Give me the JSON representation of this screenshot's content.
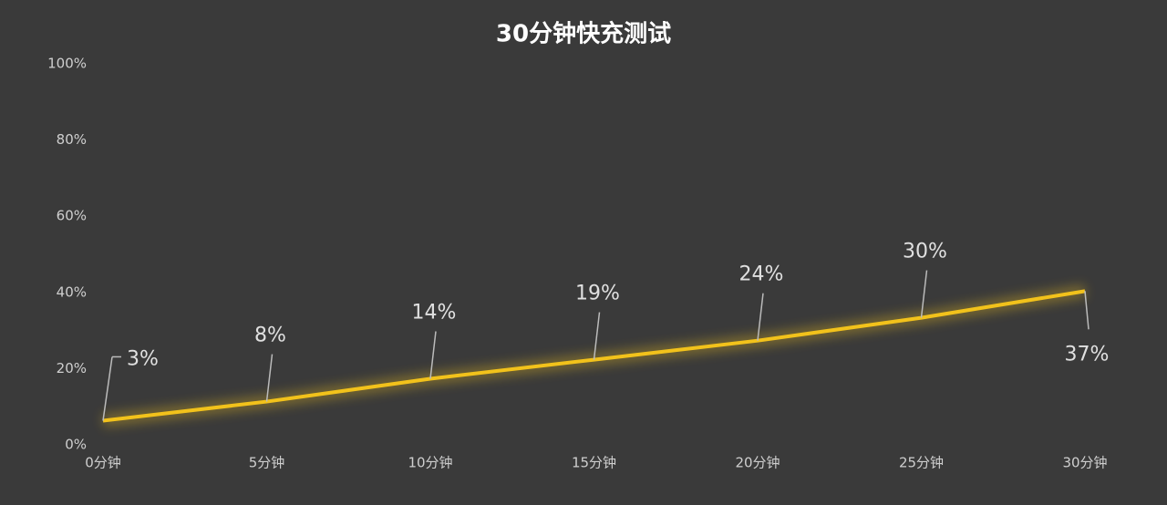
{
  "chart_data": {
    "type": "line",
    "title": "30分钟快充测试",
    "categories": [
      "0分钟",
      "5分钟",
      "10分钟",
      "15分钟",
      "20分钟",
      "25分钟",
      "30分钟"
    ],
    "values": [
      3,
      8,
      14,
      19,
      24,
      30,
      37
    ],
    "value_labels": [
      "3%",
      "8%",
      "14%",
      "19%",
      "24%",
      "30%",
      "37%"
    ],
    "color": "#f2c21b",
    "ylim": [
      0,
      100
    ],
    "yticks": [
      {
        "value": 0,
        "label": "0%"
      },
      {
        "value": 20,
        "label": "20%"
      },
      {
        "value": 40,
        "label": "40%"
      },
      {
        "value": 60,
        "label": "60%"
      },
      {
        "value": 80,
        "label": "80%"
      },
      {
        "value": 100,
        "label": "100%"
      }
    ],
    "grid": false
  }
}
